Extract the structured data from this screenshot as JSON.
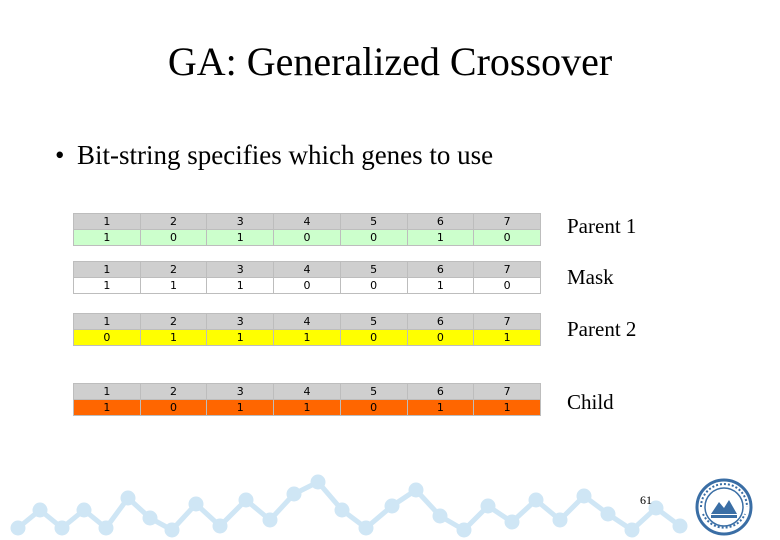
{
  "title": "GA: Generalized Crossover",
  "bullet": "Bit-string specifies which genes to use",
  "bullet_symbol": "•",
  "rows": [
    {
      "label": "Parent 1",
      "color": "#ccffcc",
      "indices": [
        "1",
        "2",
        "3",
        "4",
        "5",
        "6",
        "7"
      ],
      "bits": [
        "1",
        "0",
        "1",
        "0",
        "0",
        "1",
        "0"
      ]
    },
    {
      "label": "Mask",
      "color": "#ffffff",
      "indices": [
        "1",
        "2",
        "3",
        "4",
        "5",
        "6",
        "7"
      ],
      "bits": [
        "1",
        "1",
        "1",
        "0",
        "0",
        "1",
        "0"
      ]
    },
    {
      "label": "Parent 2",
      "color": "#ffff00",
      "indices": [
        "1",
        "2",
        "3",
        "4",
        "5",
        "6",
        "7"
      ],
      "bits": [
        "0",
        "1",
        "1",
        "1",
        "0",
        "0",
        "1"
      ]
    },
    {
      "label": "Child",
      "color": "#ff6600",
      "indices": [
        "1",
        "2",
        "3",
        "4",
        "5",
        "6",
        "7"
      ],
      "bits": [
        "1",
        "0",
        "1",
        "1",
        "0",
        "1",
        "1"
      ]
    }
  ],
  "page_number": "61",
  "logo_icon": "university-seal-icon"
}
